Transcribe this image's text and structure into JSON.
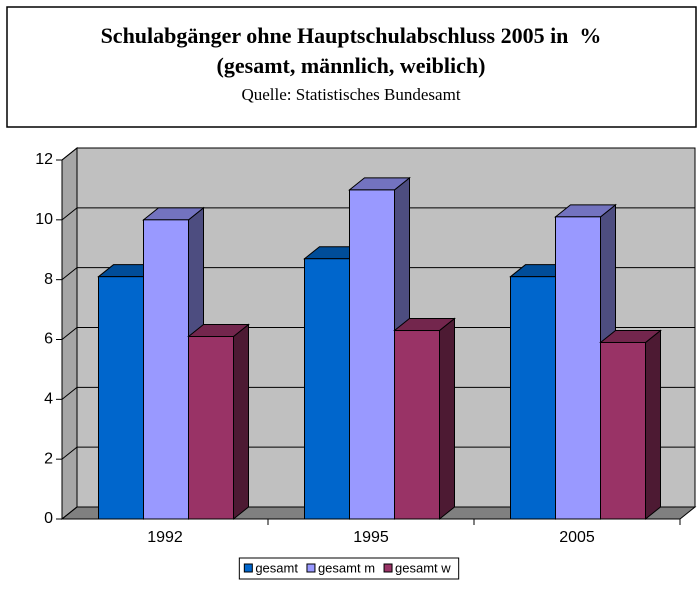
{
  "chart_data": {
    "type": "bar3d",
    "title": "Schulabgänger ohne Hauptschulabschluss 2005 in  %",
    "subtitle": "(gesamt, männlich, weiblich)",
    "source": "Quelle: Statistisches Bundesamt",
    "categories": [
      "1992",
      "1995",
      "2005"
    ],
    "series": [
      {
        "name": "gesamt",
        "color": "#0066cc",
        "values": [
          8.1,
          8.7,
          8.1
        ]
      },
      {
        "name": "gesamt m",
        "color": "#9999ff",
        "values": [
          10.0,
          11.0,
          10.1
        ]
      },
      {
        "name": "gesamt w",
        "color": "#993366",
        "values": [
          6.1,
          6.3,
          5.9
        ]
      }
    ],
    "ylim": [
      0,
      12
    ],
    "yticks": [
      0,
      2,
      4,
      6,
      8,
      10,
      12
    ],
    "grid": true,
    "legend": "bottom"
  }
}
